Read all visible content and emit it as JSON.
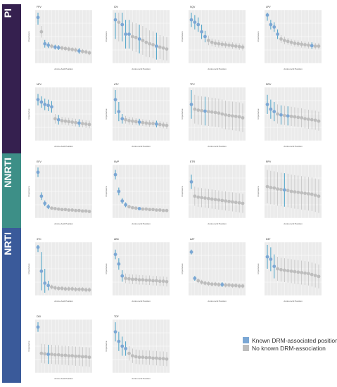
{
  "colors": {
    "known": "#7ba7d4",
    "known_drm_series": "#4aa3c8",
    "none": "#bdbdbd",
    "panel_bg": "#ebebeb",
    "grid": "#ffffff",
    "PI": "#35204f",
    "NNRTI": "#3d8f87",
    "NRTI": "#3a5a9a"
  },
  "bands": [
    {
      "key": "PI",
      "label": "PI",
      "top": 6,
      "height": 212
    },
    {
      "key": "NNRTI",
      "label": "NNRTI",
      "top": 218,
      "height": 106
    },
    {
      "key": "NRTI",
      "label": "NRTI",
      "top": 324,
      "height": 220
    }
  ],
  "legend": [
    {
      "key": "known",
      "label": "Known DRM-associated position"
    },
    {
      "key": "none",
      "label": "No known DRM-association"
    }
  ],
  "chart_data": [
    {
      "type": "scatter",
      "title": "FPV",
      "xlabel": "Amino Acid Position",
      "ylabel": "Importance",
      "values": [
        0.9,
        0.6,
        0.35,
        0.32,
        0.3,
        0.28,
        0.27,
        0.26,
        0.25,
        0.24,
        0.23,
        0.22,
        0.2,
        0.19,
        0.18,
        0.16
      ],
      "known": [
        0,
        2,
        3,
        5,
        6,
        12
      ],
      "err": [
        0.15,
        0.12,
        0.08,
        0.06,
        0.05,
        0.05,
        0.05,
        0.05,
        0.05,
        0.05,
        0.05,
        0.05,
        0.06,
        0.05,
        0.05,
        0.05
      ]
    },
    {
      "type": "scatter",
      "title": "IDV",
      "xlabel": "Amino Acid Position",
      "ylabel": "Importance",
      "values": [
        0.85,
        0.8,
        0.75,
        0.55,
        0.55,
        0.5,
        0.48,
        0.45,
        0.42,
        0.38,
        0.35,
        0.33,
        0.3,
        0.28,
        0.26,
        0.24
      ],
      "known": [
        0,
        2,
        3,
        4,
        7,
        12
      ],
      "err": [
        0.4,
        0.4,
        0.35,
        0.3,
        0.3,
        0.3,
        0.3,
        0.3,
        0.3,
        0.3,
        0.28,
        0.28,
        0.28,
        0.25,
        0.25,
        0.25
      ]
    },
    {
      "type": "scatter",
      "title": "SQV",
      "xlabel": "Amino Acid Position",
      "ylabel": "Importance",
      "values": [
        0.85,
        0.8,
        0.75,
        0.6,
        0.5,
        0.42,
        0.38,
        0.36,
        0.35,
        0.34,
        0.33,
        0.32,
        0.31,
        0.3,
        0.29,
        0.28
      ],
      "known": [
        0,
        1,
        2,
        3,
        4
      ],
      "err": [
        0.15,
        0.15,
        0.15,
        0.15,
        0.12,
        0.1,
        0.08,
        0.08,
        0.08,
        0.07,
        0.07,
        0.07,
        0.07,
        0.07,
        0.07,
        0.07
      ]
    },
    {
      "type": "scatter",
      "title": "LPV",
      "xlabel": "Amino Acid Position",
      "ylabel": "Importance",
      "values": [
        0.95,
        0.75,
        0.7,
        0.55,
        0.45,
        0.42,
        0.4,
        0.38,
        0.36,
        0.35,
        0.34,
        0.33,
        0.32,
        0.31,
        0.3,
        0.3
      ],
      "known": [
        0,
        1,
        2,
        3,
        13
      ],
      "err": [
        0.12,
        0.1,
        0.1,
        0.1,
        0.08,
        0.08,
        0.07,
        0.07,
        0.07,
        0.07,
        0.07,
        0.07,
        0.07,
        0.07,
        0.07,
        0.07
      ]
    },
    {
      "type": "scatter",
      "title": "NFV",
      "xlabel": "Amino Acid Position",
      "ylabel": "Importance",
      "values": [
        0.8,
        0.75,
        0.7,
        0.68,
        0.65,
        0.4,
        0.38,
        0.36,
        0.35,
        0.34,
        0.33,
        0.32,
        0.31,
        0.3,
        0.29,
        0.28
      ],
      "known": [
        0,
        1,
        2,
        3,
        4,
        6,
        12
      ],
      "err": [
        0.12,
        0.12,
        0.12,
        0.12,
        0.12,
        0.1,
        0.1,
        0.08,
        0.08,
        0.08,
        0.08,
        0.08,
        0.08,
        0.08,
        0.08,
        0.08
      ]
    },
    {
      "type": "scatter",
      "title": "ATV",
      "xlabel": "Amino Acid Position",
      "ylabel": "Importance",
      "values": [
        0.8,
        0.55,
        0.4,
        0.38,
        0.36,
        0.35,
        0.34,
        0.33,
        0.32,
        0.31,
        0.3,
        0.3,
        0.29,
        0.28,
        0.27,
        0.26
      ],
      "known": [
        0,
        1,
        2,
        7,
        12
      ],
      "err": [
        0.3,
        0.2,
        0.1,
        0.08,
        0.08,
        0.08,
        0.07,
        0.07,
        0.07,
        0.07,
        0.07,
        0.07,
        0.07,
        0.07,
        0.07,
        0.07
      ]
    },
    {
      "type": "scatter",
      "title": "TPV",
      "xlabel": "Amino Acid Position",
      "ylabel": "Importance",
      "values": [
        0.7,
        0.6,
        0.58,
        0.57,
        0.56,
        0.55,
        0.54,
        0.53,
        0.52,
        0.5,
        0.48,
        0.47,
        0.46,
        0.45,
        0.44,
        0.42
      ],
      "known": [
        0,
        4
      ],
      "err": [
        0.3,
        0.3,
        0.3,
        0.3,
        0.3,
        0.3,
        0.3,
        0.3,
        0.3,
        0.3,
        0.3,
        0.3,
        0.3,
        0.3,
        0.3,
        0.3
      ]
    },
    {
      "type": "scatter",
      "title": "DRV",
      "xlabel": "Amino Acid Position",
      "ylabel": "Importance",
      "values": [
        0.7,
        0.6,
        0.55,
        0.5,
        0.48,
        0.47,
        0.46,
        0.45,
        0.44,
        0.43,
        0.42,
        0.4,
        0.39,
        0.38,
        0.37,
        0.35
      ],
      "known": [
        0,
        1,
        2,
        4,
        6
      ],
      "err": [
        0.2,
        0.2,
        0.2,
        0.2,
        0.2,
        0.2,
        0.2,
        0.2,
        0.2,
        0.2,
        0.2,
        0.2,
        0.2,
        0.2,
        0.2,
        0.2
      ]
    },
    {
      "type": "scatter",
      "title": "EFV",
      "xlabel": "Amino Acid Position",
      "ylabel": "Importance",
      "values": [
        0.9,
        0.4,
        0.25,
        0.18,
        0.15,
        0.14,
        0.13,
        0.12,
        0.12,
        0.11,
        0.11,
        0.1,
        0.1,
        0.09,
        0.09,
        0.08
      ],
      "known": [
        0,
        1,
        2,
        3
      ],
      "err": [
        0.1,
        0.08,
        0.06,
        0.05,
        0.03,
        0.03,
        0.03,
        0.03,
        0.03,
        0.03,
        0.03,
        0.03,
        0.03,
        0.03,
        0.03,
        0.03
      ]
    },
    {
      "type": "scatter",
      "title": "NVP",
      "xlabel": "Amino Acid Position",
      "ylabel": "Importance",
      "values": [
        0.85,
        0.5,
        0.3,
        0.22,
        0.18,
        0.16,
        0.15,
        0.14,
        0.13,
        0.13,
        0.12,
        0.12,
        0.11,
        0.11,
        0.1,
        0.1
      ],
      "known": [
        0,
        1,
        2,
        3,
        7
      ],
      "err": [
        0.1,
        0.08,
        0.06,
        0.05,
        0.04,
        0.03,
        0.03,
        0.03,
        0.03,
        0.03,
        0.03,
        0.03,
        0.03,
        0.03,
        0.03,
        0.03
      ]
    },
    {
      "type": "scatter",
      "title": "ETR",
      "xlabel": "Amino Acid Position",
      "ylabel": "Importance",
      "values": [
        0.7,
        0.4,
        0.38,
        0.37,
        0.36,
        0.35,
        0.34,
        0.33,
        0.32,
        0.31,
        0.3,
        0.29,
        0.28,
        0.27,
        0.26,
        0.25
      ],
      "known": [
        0
      ],
      "err": [
        0.15,
        0.2,
        0.2,
        0.2,
        0.2,
        0.2,
        0.2,
        0.2,
        0.2,
        0.2,
        0.2,
        0.2,
        0.2,
        0.2,
        0.2,
        0.2
      ]
    },
    {
      "type": "scatter",
      "title": "RPV",
      "xlabel": "Amino Acid Position",
      "ylabel": "Importance",
      "values": [
        0.6,
        0.58,
        0.57,
        0.55,
        0.54,
        0.53,
        0.52,
        0.5,
        0.49,
        0.48,
        0.47,
        0.46,
        0.45,
        0.44,
        0.42,
        0.4
      ],
      "known": [
        5
      ],
      "err": [
        0.35,
        0.35,
        0.35,
        0.35,
        0.35,
        0.35,
        0.35,
        0.35,
        0.35,
        0.35,
        0.35,
        0.35,
        0.35,
        0.35,
        0.35,
        0.35
      ]
    },
    {
      "type": "scatter",
      "title": "3TC",
      "xlabel": "Amino Acid Position",
      "ylabel": "Importance",
      "values": [
        0.95,
        0.45,
        0.2,
        0.15,
        0.12,
        0.1,
        0.09,
        0.09,
        0.08,
        0.08,
        0.08,
        0.07,
        0.07,
        0.07,
        0.06,
        0.06
      ],
      "known": [
        0,
        1,
        2,
        3
      ],
      "err": [
        0.1,
        0.4,
        0.3,
        0.1,
        0.05,
        0.05,
        0.05,
        0.05,
        0.05,
        0.05,
        0.05,
        0.05,
        0.05,
        0.05,
        0.05,
        0.05
      ]
    },
    {
      "type": "scatter",
      "title": "ABC",
      "xlabel": "Amino Acid Position",
      "ylabel": "Importance",
      "values": [
        0.8,
        0.6,
        0.35,
        0.3,
        0.29,
        0.28,
        0.28,
        0.27,
        0.27,
        0.26,
        0.26,
        0.25,
        0.25,
        0.24,
        0.24,
        0.23
      ],
      "known": [
        0,
        1,
        2
      ],
      "err": [
        0.1,
        0.12,
        0.12,
        0.1,
        0.1,
        0.1,
        0.1,
        0.1,
        0.1,
        0.1,
        0.1,
        0.1,
        0.1,
        0.1,
        0.1,
        0.1
      ]
    },
    {
      "type": "scatter",
      "title": "AZT",
      "xlabel": "Amino Acid Position",
      "ylabel": "Importance",
      "values": [
        0.85,
        0.3,
        0.25,
        0.22,
        0.2,
        0.19,
        0.18,
        0.18,
        0.17,
        0.17,
        0.16,
        0.16,
        0.15,
        0.15,
        0.14,
        0.14
      ],
      "known": [
        0,
        1,
        9
      ],
      "err": [
        0.05,
        0.05,
        0.05,
        0.05,
        0.05,
        0.05,
        0.05,
        0.05,
        0.05,
        0.05,
        0.05,
        0.05,
        0.05,
        0.05,
        0.05,
        0.05
      ]
    },
    {
      "type": "scatter",
      "title": "D4T",
      "xlabel": "Amino Acid Position",
      "ylabel": "Importance",
      "values": [
        0.75,
        0.7,
        0.55,
        0.5,
        0.48,
        0.47,
        0.46,
        0.45,
        0.44,
        0.43,
        0.42,
        0.41,
        0.4,
        0.38,
        0.36,
        0.34
      ],
      "known": [
        0,
        1,
        2
      ],
      "err": [
        0.25,
        0.25,
        0.25,
        0.25,
        0.25,
        0.25,
        0.25,
        0.25,
        0.25,
        0.25,
        0.25,
        0.25,
        0.25,
        0.25,
        0.25,
        0.25
      ]
    },
    {
      "type": "scatter",
      "title": "DDI",
      "xlabel": "Amino Acid Position",
      "ylabel": "Importance",
      "values": [
        0.9,
        0.35,
        0.34,
        0.33,
        0.33,
        0.32,
        0.32,
        0.31,
        0.31,
        0.3,
        0.3,
        0.29,
        0.29,
        0.28,
        0.28,
        0.27
      ],
      "known": [
        0,
        3
      ],
      "err": [
        0.1,
        0.2,
        0.2,
        0.2,
        0.2,
        0.2,
        0.2,
        0.2,
        0.2,
        0.2,
        0.2,
        0.2,
        0.2,
        0.2,
        0.2,
        0.2
      ]
    },
    {
      "type": "scatter",
      "title": "TDF",
      "xlabel": "Amino Acid Position",
      "ylabel": "Importance",
      "values": [
        0.8,
        0.6,
        0.5,
        0.45,
        0.35,
        0.3,
        0.28,
        0.27,
        0.27,
        0.26,
        0.26,
        0.25,
        0.25,
        0.24,
        0.24,
        0.23
      ],
      "known": [
        0,
        1,
        2,
        3
      ],
      "err": [
        0.2,
        0.2,
        0.2,
        0.15,
        0.15,
        0.15,
        0.15,
        0.15,
        0.15,
        0.15,
        0.15,
        0.15,
        0.15,
        0.15,
        0.15,
        0.15
      ]
    }
  ]
}
